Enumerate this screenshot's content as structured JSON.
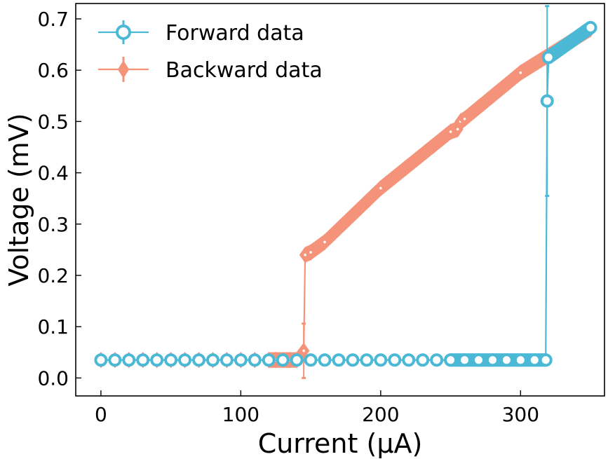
{
  "chart_data": {
    "type": "line",
    "title": "",
    "xlabel": "Current (μA)",
    "ylabel": "Voltage (mV)",
    "xlim": [
      -18,
      360
    ],
    "ylim": [
      -0.035,
      0.73
    ],
    "xticks": [
      0,
      100,
      200,
      300
    ],
    "xtick_labels": [
      "0",
      "100",
      "200",
      "300"
    ],
    "yticks": [
      0.0,
      0.1,
      0.2,
      0.3,
      0.4,
      0.5,
      0.6,
      0.7
    ],
    "ytick_labels": [
      "0.0",
      "0.1",
      "0.2",
      "0.3",
      "0.4",
      "0.5",
      "0.6",
      "0.7"
    ],
    "grid": false,
    "legend_position": "top-left",
    "series": [
      {
        "name": "Forward data",
        "color": "#4bb9d6",
        "marker": "circle-open",
        "x": [
          0,
          10,
          20,
          30,
          40,
          50,
          60,
          70,
          80,
          90,
          100,
          110,
          120,
          130,
          140,
          150,
          160,
          170,
          180,
          190,
          200,
          210,
          220,
          230,
          240,
          250,
          260,
          270,
          280,
          290,
          300,
          310,
          318,
          319,
          320,
          350
        ],
        "y": [
          0.035,
          0.035,
          0.035,
          0.035,
          0.035,
          0.035,
          0.035,
          0.035,
          0.035,
          0.035,
          0.035,
          0.035,
          0.035,
          0.035,
          0.035,
          0.035,
          0.035,
          0.035,
          0.035,
          0.035,
          0.035,
          0.035,
          0.035,
          0.035,
          0.035,
          0.035,
          0.035,
          0.035,
          0.035,
          0.035,
          0.035,
          0.035,
          0.035,
          0.54,
          0.625,
          0.683
        ],
        "err": [
          0,
          0,
          0,
          0,
          0,
          0,
          0,
          0,
          0,
          0,
          0,
          0,
          0,
          0,
          0,
          0,
          0,
          0,
          0,
          0,
          0,
          0,
          0,
          0,
          0,
          0,
          0,
          0,
          0,
          0,
          0,
          0,
          0,
          0.185,
          0,
          0
        ],
        "dense_ranges": [
          [
            250,
            318
          ],
          [
            320,
            350
          ]
        ]
      },
      {
        "name": "Backward data",
        "color": "#f4937a",
        "marker": "diamond",
        "x": [
          0,
          10,
          20,
          30,
          40,
          50,
          60,
          70,
          80,
          90,
          100,
          110,
          120,
          125,
          130,
          135,
          140,
          145,
          146,
          150,
          160,
          200,
          250,
          255,
          257,
          260,
          300,
          350
        ],
        "y": [
          0.035,
          0.035,
          0.035,
          0.035,
          0.035,
          0.035,
          0.035,
          0.035,
          0.035,
          0.035,
          0.035,
          0.035,
          0.035,
          0.035,
          0.035,
          0.035,
          0.035,
          0.053,
          0.24,
          0.245,
          0.265,
          0.37,
          0.48,
          0.485,
          0.5,
          0.505,
          0.595,
          0.68
        ],
        "err": [
          0,
          0,
          0,
          0,
          0,
          0,
          0,
          0,
          0,
          0,
          0,
          0,
          0,
          0,
          0,
          0,
          0,
          0.053,
          0,
          0,
          0,
          0,
          0,
          0,
          0,
          0,
          0,
          0
        ],
        "dense_ranges": [
          [
            120,
            145
          ],
          [
            146,
            350
          ]
        ]
      }
    ]
  }
}
